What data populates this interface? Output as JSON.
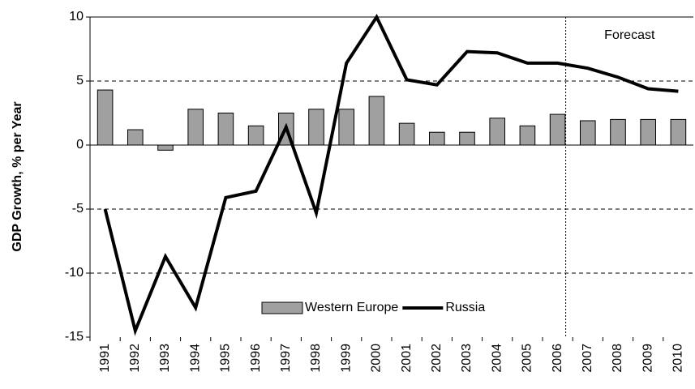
{
  "chart_data": {
    "type": "bar_line",
    "y_label": "GDP Growth, % per Year",
    "categories": [
      "1991",
      "1992",
      "1993",
      "1994",
      "1995",
      "1996",
      "1997",
      "1998",
      "1999",
      "2000",
      "2001",
      "2002",
      "2003",
      "2004",
      "2005",
      "2006",
      "2007",
      "2008",
      "2009",
      "2010"
    ],
    "series": [
      {
        "name": "Western Europe",
        "kind": "bar",
        "color": "#a0a0a0",
        "values": [
          4.3,
          1.2,
          -0.4,
          2.8,
          2.5,
          1.5,
          2.5,
          2.8,
          2.8,
          3.8,
          1.7,
          1.0,
          1.0,
          2.1,
          1.5,
          2.4,
          1.9,
          2.0,
          2.0,
          2.0
        ]
      },
      {
        "name": "Russia",
        "kind": "line",
        "color": "#000000",
        "values": [
          -5.0,
          -14.5,
          -8.7,
          -12.7,
          -4.1,
          -3.6,
          1.4,
          -5.3,
          6.4,
          10.0,
          5.1,
          4.7,
          7.3,
          7.2,
          6.4,
          6.4,
          6.0,
          5.3,
          4.4,
          4.2
        ]
      }
    ],
    "ylim": [
      -15,
      10
    ],
    "yticks": [
      -15,
      -10,
      -5,
      0,
      5,
      10
    ],
    "grid": true,
    "annotation": {
      "text": "Forecast",
      "from": "2006"
    },
    "legend": "bottom"
  }
}
